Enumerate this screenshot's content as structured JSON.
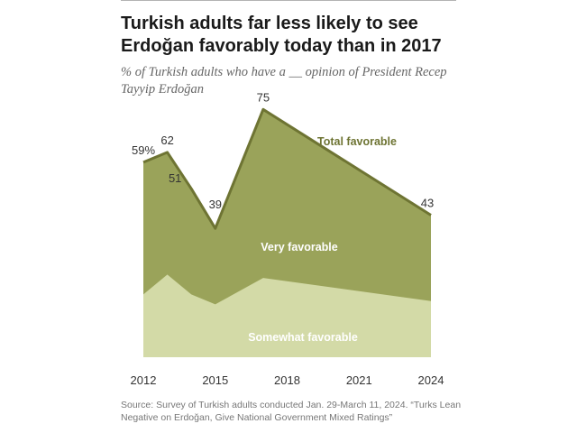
{
  "title": "Turkish adults far less likely to see Erdoğan favorably today than in 2017",
  "subtitle": "% of Turkish adults who have a __ opinion of President Recep Tayyip Erdoğan",
  "source": "Source: Survey of Turkish adults conducted Jan. 29-March 11, 2024. “Turks Lean Negative on Erdoğan, Give National Government Mixed Ratings”",
  "colors": {
    "total": "#6e7433",
    "very": "#9aa35a",
    "somewhat": "#d3daa7",
    "text": "#333333"
  },
  "chart_data": {
    "type": "area",
    "x": [
      2012,
      2013,
      2014,
      2015,
      2017,
      2024
    ],
    "x_ticks": [
      2012,
      2015,
      2018,
      2021,
      2024
    ],
    "xlim": [
      2012,
      2024
    ],
    "ylim": [
      0,
      80
    ],
    "series": [
      {
        "name": "Total favorable",
        "values": [
          59,
          62,
          51,
          39,
          75,
          43
        ]
      },
      {
        "name": "Very favorable",
        "values": [
          null,
          null,
          null,
          null,
          null,
          null
        ]
      },
      {
        "name": "Somewhat favorable",
        "values": [
          19,
          25,
          19,
          16,
          24,
          17
        ]
      }
    ],
    "total_labels": [
      "59%",
      "62",
      "51",
      "39",
      "75",
      "43"
    ],
    "stacked": true,
    "grid": false
  }
}
